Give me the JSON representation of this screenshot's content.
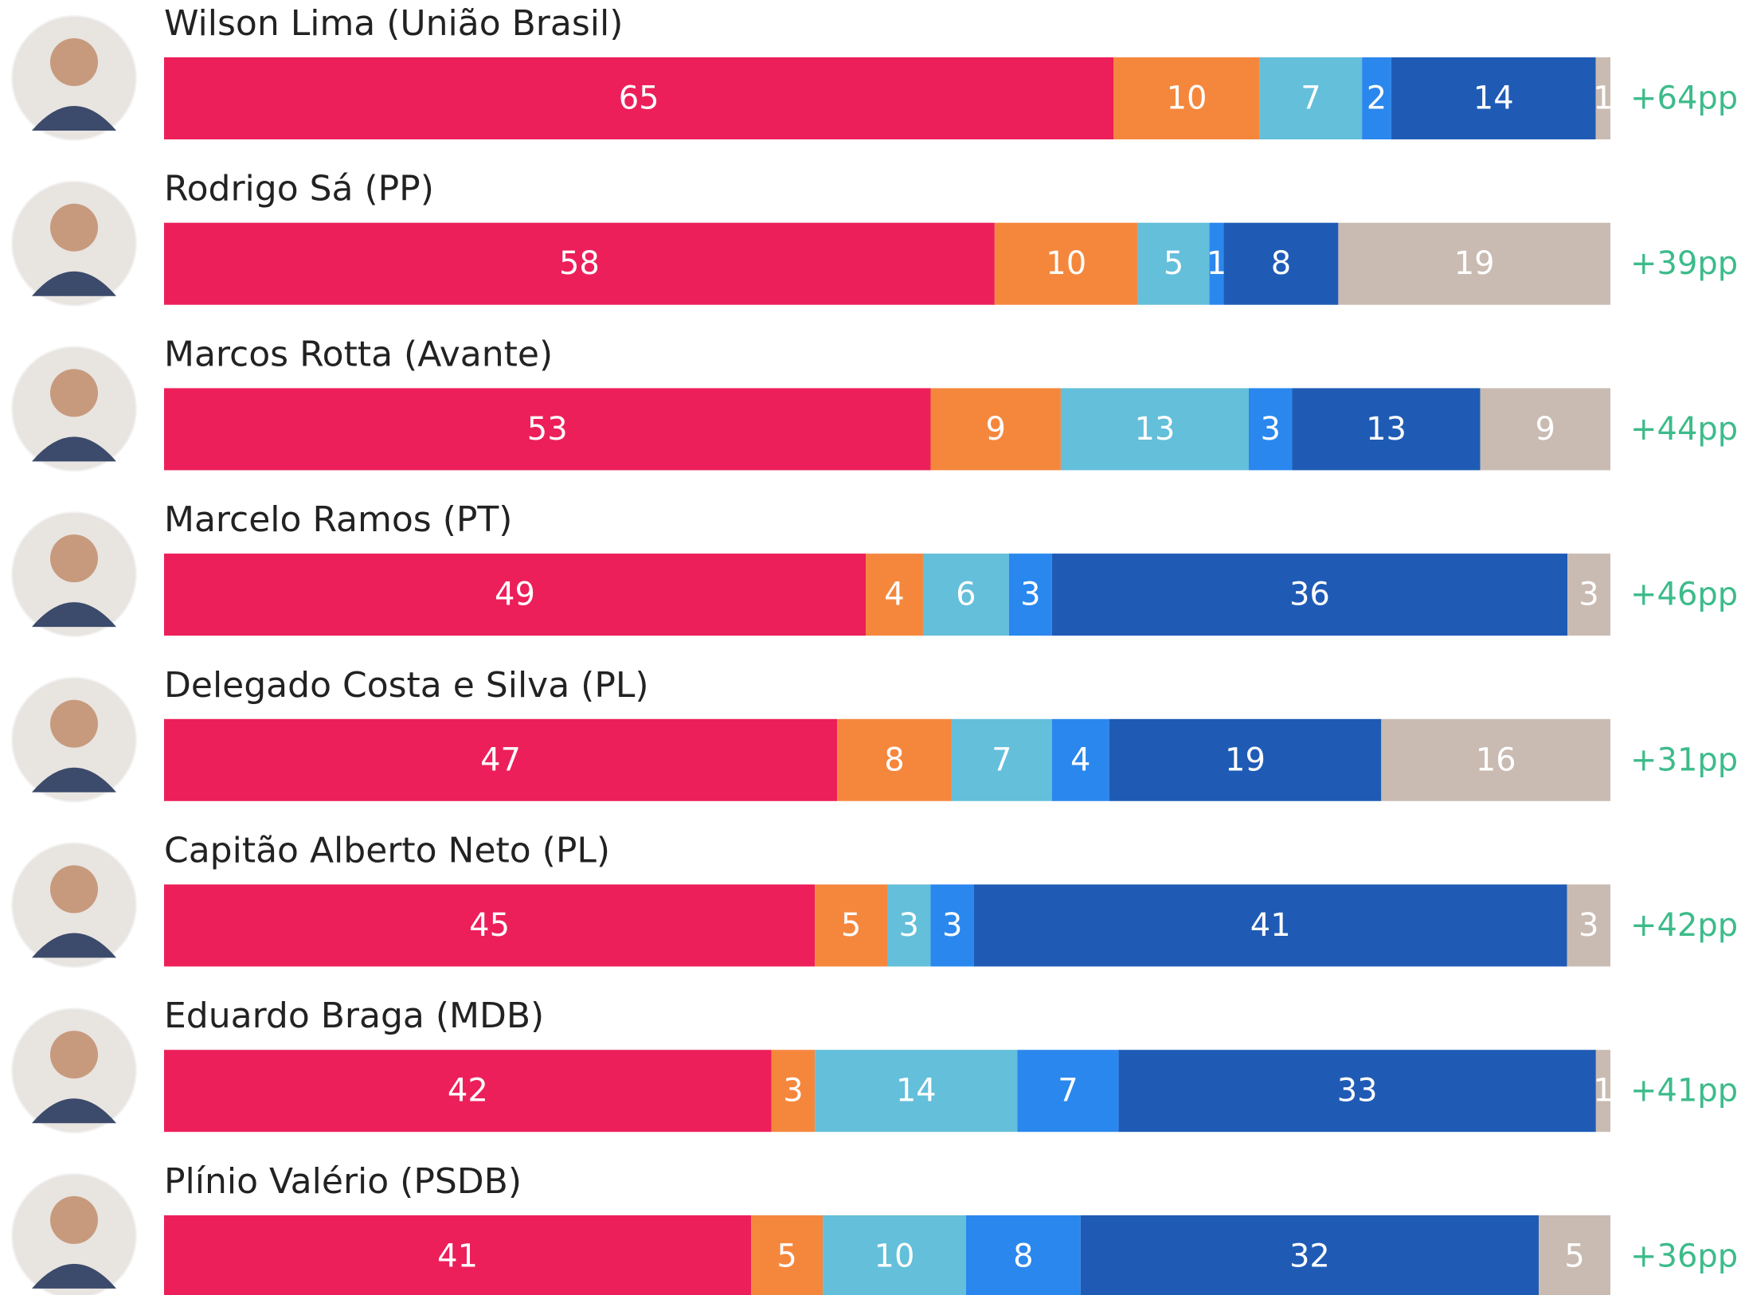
{
  "chart_data": {
    "type": "stacked-bar-horizontal",
    "categories": [
      "Wilson Lima (União Brasil)",
      "Rodrigo Sá (PP)",
      "Marcos Rotta (Avante)",
      "Marcelo Ramos (PT)",
      "Delegado Costa e Silva (PL)",
      "Capitão Alberto Neto (PL)",
      "Eduardo Braga (MDB)",
      "Plínio Valério (PSDB)"
    ],
    "series": [
      {
        "color": "#ec1f5a",
        "values": [
          65,
          58,
          53,
          49,
          47,
          45,
          42,
          41
        ]
      },
      {
        "color": "#f5873d",
        "values": [
          10,
          10,
          9,
          4,
          8,
          5,
          3,
          5
        ]
      },
      {
        "color": "#63bfda",
        "values": [
          7,
          5,
          13,
          6,
          7,
          3,
          14,
          10
        ]
      },
      {
        "color": "#2a87ee",
        "values": [
          2,
          1,
          3,
          3,
          4,
          3,
          7,
          8
        ]
      },
      {
        "color": "#1f5bb5",
        "values": [
          14,
          8,
          13,
          36,
          19,
          41,
          33,
          32
        ]
      },
      {
        "color": "#c9bbb2",
        "values": [
          1,
          19,
          9,
          3,
          16,
          3,
          1,
          5
        ]
      }
    ],
    "annotations": [
      "+64pp",
      "+39pp",
      "+44pp",
      "+46pp",
      "+31pp",
      "+42pp",
      "+41pp",
      "+36pp"
    ],
    "annotation_color": "#3dbb8a"
  }
}
